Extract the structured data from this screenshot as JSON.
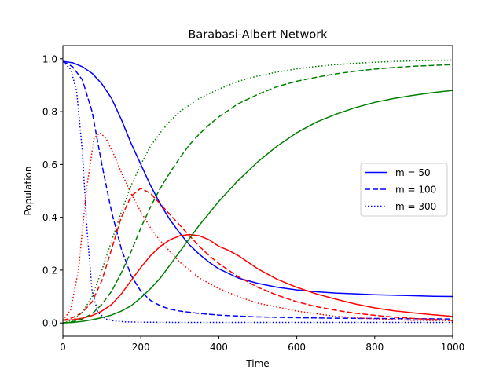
{
  "chart_data": {
    "type": "line",
    "title": "Barabasi-Albert Network",
    "xlabel": "Time",
    "ylabel": "Population",
    "xlim": [
      0,
      1000
    ],
    "ylim": [
      -0.05,
      1.05
    ],
    "xticks": [
      0,
      200,
      400,
      600,
      800,
      1000
    ],
    "xtick_labels": [
      "0",
      "200",
      "400",
      "600",
      "800",
      "1000"
    ],
    "yticks": [
      0.0,
      0.2,
      0.4,
      0.6,
      0.8,
      1.0
    ],
    "ytick_labels": [
      "0.0",
      "0.2",
      "0.4",
      "0.6",
      "0.8",
      "1.0"
    ],
    "grid": false,
    "legend_position": "center-right",
    "legend": [
      {
        "label": "m = 50",
        "color": "#0000ff",
        "style": "solid"
      },
      {
        "label": "m = 100",
        "color": "#0000ff",
        "style": "dashed"
      },
      {
        "label": "m = 300",
        "color": "#0000ff",
        "style": "dotted"
      }
    ],
    "series": [
      {
        "color": "#0000ff",
        "style": "solid",
        "x": [
          0,
          25,
          50,
          75,
          100,
          125,
          150,
          175,
          200,
          225,
          250,
          275,
          300,
          325,
          350,
          375,
          400,
          450,
          500,
          550,
          600,
          650,
          700,
          750,
          800,
          850,
          900,
          950,
          1000
        ],
        "y": [
          0.99,
          0.985,
          0.97,
          0.945,
          0.905,
          0.85,
          0.77,
          0.68,
          0.6,
          0.52,
          0.45,
          0.39,
          0.34,
          0.295,
          0.26,
          0.23,
          0.205,
          0.17,
          0.15,
          0.135,
          0.125,
          0.118,
          0.113,
          0.11,
          0.107,
          0.105,
          0.103,
          0.101,
          0.1
        ]
      },
      {
        "color": "#0000ff",
        "style": "dashed",
        "x": [
          0,
          25,
          50,
          75,
          100,
          125,
          150,
          175,
          200,
          225,
          250,
          275,
          300,
          350,
          400,
          450,
          500,
          600,
          700,
          800,
          900,
          1000
        ],
        "y": [
          0.99,
          0.97,
          0.92,
          0.8,
          0.6,
          0.42,
          0.28,
          0.18,
          0.12,
          0.085,
          0.065,
          0.052,
          0.045,
          0.036,
          0.03,
          0.026,
          0.023,
          0.02,
          0.018,
          0.017,
          0.016,
          0.015
        ]
      },
      {
        "color": "#0000ff",
        "style": "dotted",
        "x": [
          0,
          20,
          35,
          50,
          62,
          75,
          90,
          110,
          130,
          160,
          200,
          300,
          500,
          1000
        ],
        "y": [
          0.99,
          0.96,
          0.88,
          0.65,
          0.35,
          0.12,
          0.04,
          0.015,
          0.008,
          0.004,
          0.003,
          0.002,
          0.002,
          0.002
        ]
      },
      {
        "color": "#ff0000",
        "style": "solid",
        "x": [
          0,
          25,
          50,
          75,
          100,
          125,
          150,
          175,
          200,
          225,
          250,
          275,
          300,
          325,
          350,
          375,
          400,
          425,
          450,
          500,
          550,
          600,
          650,
          700,
          750,
          800,
          850,
          900,
          950,
          1000
        ],
        "y": [
          0.01,
          0.012,
          0.018,
          0.028,
          0.045,
          0.07,
          0.11,
          0.16,
          0.21,
          0.255,
          0.29,
          0.315,
          0.33,
          0.335,
          0.33,
          0.315,
          0.29,
          0.275,
          0.255,
          0.205,
          0.165,
          0.135,
          0.11,
          0.09,
          0.072,
          0.057,
          0.046,
          0.038,
          0.031,
          0.025
        ]
      },
      {
        "color": "#ff0000",
        "style": "dashed",
        "x": [
          0,
          25,
          50,
          75,
          100,
          125,
          150,
          175,
          200,
          225,
          250,
          275,
          300,
          325,
          350,
          375,
          400,
          450,
          500,
          550,
          600,
          650,
          700,
          750,
          800,
          850,
          900,
          950,
          1000
        ],
        "y": [
          0.01,
          0.02,
          0.04,
          0.08,
          0.16,
          0.28,
          0.4,
          0.48,
          0.51,
          0.49,
          0.45,
          0.41,
          0.37,
          0.33,
          0.29,
          0.255,
          0.225,
          0.175,
          0.135,
          0.105,
          0.08,
          0.062,
          0.048,
          0.037,
          0.029,
          0.022,
          0.017,
          0.013,
          0.01
        ]
      },
      {
        "color": "#ff0000",
        "style": "dotted",
        "x": [
          0,
          20,
          40,
          60,
          80,
          95,
          110,
          130,
          150,
          175,
          200,
          225,
          250,
          300,
          350,
          400,
          450,
          500,
          600,
          700,
          800,
          900,
          1000
        ],
        "y": [
          0.01,
          0.05,
          0.2,
          0.5,
          0.7,
          0.72,
          0.7,
          0.64,
          0.57,
          0.49,
          0.42,
          0.36,
          0.31,
          0.23,
          0.17,
          0.13,
          0.1,
          0.075,
          0.045,
          0.025,
          0.015,
          0.01,
          0.008
        ]
      },
      {
        "color": "#008000",
        "style": "solid",
        "x": [
          0,
          25,
          50,
          75,
          100,
          125,
          150,
          175,
          200,
          225,
          250,
          275,
          300,
          325,
          350,
          375,
          400,
          450,
          500,
          550,
          600,
          650,
          700,
          750,
          800,
          850,
          900,
          950,
          1000
        ],
        "y": [
          0.0,
          0.002,
          0.006,
          0.012,
          0.02,
          0.03,
          0.045,
          0.065,
          0.095,
          0.13,
          0.17,
          0.22,
          0.27,
          0.32,
          0.37,
          0.415,
          0.46,
          0.54,
          0.61,
          0.67,
          0.72,
          0.76,
          0.79,
          0.815,
          0.835,
          0.85,
          0.862,
          0.872,
          0.88
        ]
      },
      {
        "color": "#008000",
        "style": "dashed",
        "x": [
          0,
          25,
          50,
          75,
          100,
          125,
          150,
          175,
          200,
          225,
          250,
          275,
          300,
          325,
          350,
          375,
          400,
          450,
          500,
          550,
          600,
          650,
          700,
          750,
          800,
          850,
          900,
          950,
          1000
        ],
        "y": [
          0.0,
          0.005,
          0.015,
          0.035,
          0.07,
          0.12,
          0.19,
          0.27,
          0.36,
          0.44,
          0.51,
          0.57,
          0.625,
          0.675,
          0.715,
          0.75,
          0.78,
          0.83,
          0.865,
          0.895,
          0.915,
          0.93,
          0.943,
          0.953,
          0.961,
          0.967,
          0.972,
          0.975,
          0.978
        ]
      },
      {
        "color": "#008000",
        "style": "dotted",
        "x": [
          0,
          25,
          50,
          75,
          100,
          125,
          150,
          175,
          200,
          225,
          250,
          275,
          300,
          350,
          400,
          450,
          500,
          550,
          600,
          650,
          700,
          750,
          800,
          850,
          900,
          950,
          1000
        ],
        "y": [
          0.0,
          0.01,
          0.04,
          0.1,
          0.2,
          0.31,
          0.42,
          0.52,
          0.6,
          0.67,
          0.72,
          0.765,
          0.8,
          0.85,
          0.885,
          0.915,
          0.935,
          0.95,
          0.962,
          0.971,
          0.978,
          0.983,
          0.987,
          0.99,
          0.992,
          0.994,
          0.995
        ]
      }
    ]
  }
}
